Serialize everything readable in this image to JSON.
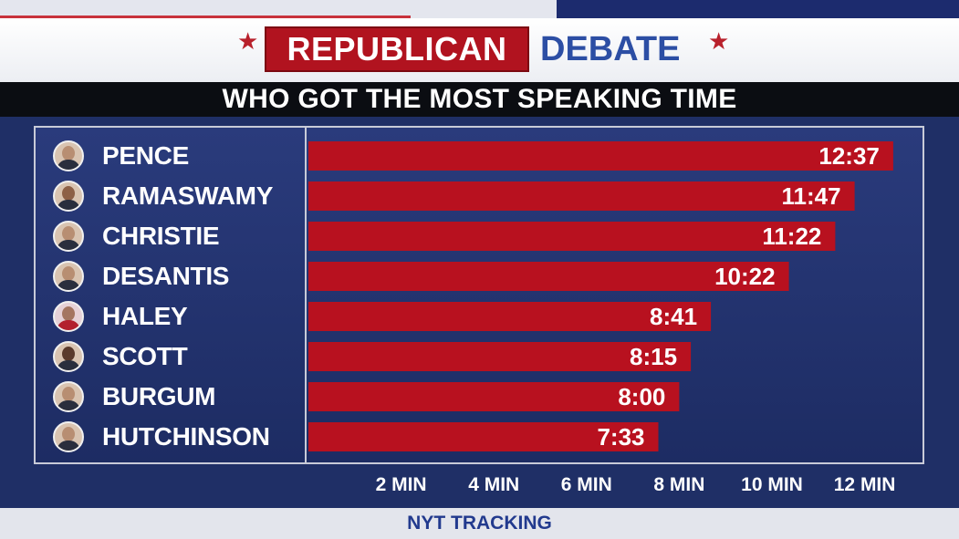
{
  "header": {
    "title_red": "REPUBLICAN",
    "title_blue": "DEBATE",
    "subtitle": "WHO GOT THE MOST SPEAKING TIME"
  },
  "footer": {
    "source": "NYT TRACKING"
  },
  "colors": {
    "bar": "#b8111f",
    "background": "#1f2f66",
    "title_red_bg": "#b1131f",
    "title_blue": "#2c4ea4"
  },
  "chart_data": {
    "type": "bar",
    "orientation": "horizontal",
    "title": "WHO GOT THE MOST SPEAKING TIME",
    "categories": [
      "PENCE",
      "RAMASWAMY",
      "CHRISTIE",
      "DESANTIS",
      "HALEY",
      "SCOTT",
      "BURGUM",
      "HUTCHINSON"
    ],
    "values_minutes": [
      12.617,
      11.783,
      11.367,
      10.367,
      8.683,
      8.25,
      8.0,
      7.55
    ],
    "value_labels": [
      "12:37",
      "11:47",
      "11:22",
      "10:22",
      "8:41",
      "8:15",
      "8:00",
      "7:33"
    ],
    "x_ticks": [
      2,
      4,
      6,
      8,
      10,
      12
    ],
    "x_tick_labels": [
      "2 MIN",
      "4 MIN",
      "6 MIN",
      "8 MIN",
      "10 MIN",
      "12 MIN"
    ],
    "xlim": [
      0,
      13
    ],
    "grid": false,
    "legend": "none"
  },
  "candidates": [
    {
      "name": "PENCE",
      "avatar_icon": "pence-photo-icon"
    },
    {
      "name": "RAMASWAMY",
      "avatar_icon": "ramaswamy-photo-icon"
    },
    {
      "name": "CHRISTIE",
      "avatar_icon": "christie-photo-icon"
    },
    {
      "name": "DESANTIS",
      "avatar_icon": "desantis-photo-icon"
    },
    {
      "name": "HALEY",
      "avatar_icon": "haley-photo-icon"
    },
    {
      "name": "SCOTT",
      "avatar_icon": "scott-photo-icon"
    },
    {
      "name": "BURGUM",
      "avatar_icon": "burgum-photo-icon"
    },
    {
      "name": "HUTCHINSON",
      "avatar_icon": "hutchinson-photo-icon"
    }
  ]
}
